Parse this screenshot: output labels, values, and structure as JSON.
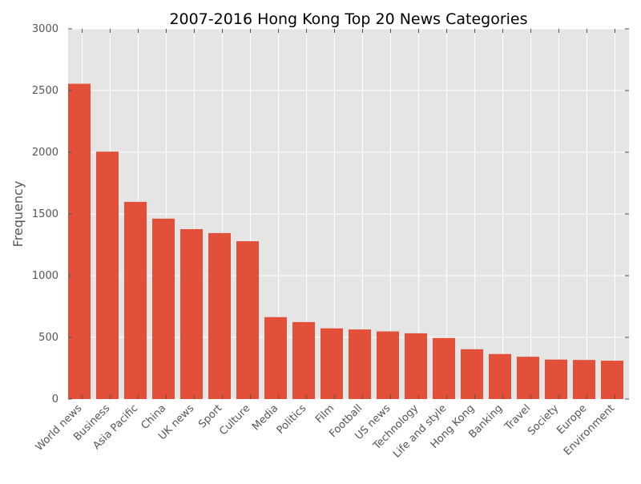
{
  "chart_data": {
    "type": "bar",
    "title": "2007-2016 Hong Kong Top 20 News Categories",
    "xlabel": "",
    "ylabel": "Frequency",
    "ylim": [
      0,
      3000
    ],
    "yticks": [
      0,
      500,
      1000,
      1500,
      2000,
      2500,
      3000
    ],
    "grid": true,
    "legend": "none",
    "categories": [
      "World news",
      "Business",
      "Asia Pacific",
      "China",
      "UK news",
      "Sport",
      "Culture",
      "Media",
      "Politics",
      "Film",
      "Football",
      "US news",
      "Technology",
      "Life and style",
      "Hong Kong",
      "Banking",
      "Travel",
      "Society",
      "Europe",
      "Environment"
    ],
    "values": [
      2555,
      2005,
      1598,
      1462,
      1377,
      1345,
      1279,
      664,
      624,
      573,
      564,
      548,
      533,
      495,
      404,
      365,
      343,
      320,
      317,
      311
    ],
    "bar_color": "#e24a33",
    "plot_background": "#e5e5e5",
    "grid_color": "#ffffff",
    "text_color": "#555555"
  }
}
